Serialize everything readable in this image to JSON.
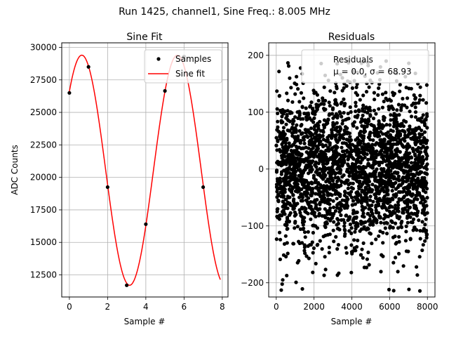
{
  "figure": {
    "suptitle": "Run 1425, channel1, Sine Freq.: 8.005 MHz"
  },
  "chart_data": [
    {
      "type": "line",
      "title": "Sine Fit",
      "xlabel": "Sample #",
      "ylabel": "ADC Counts",
      "xlim": [
        -0.4,
        8.3
      ],
      "ylim": [
        10800,
        30350
      ],
      "xticks": [
        0,
        2,
        4,
        6,
        8
      ],
      "yticks": [
        12500,
        15000,
        17500,
        20000,
        22500,
        25000,
        27500,
        30000
      ],
      "xtick_labels": [
        "0",
        "2",
        "4",
        "6",
        "8"
      ],
      "ytick_labels": [
        "12500",
        "15000",
        "17500",
        "20000",
        "22500",
        "25000",
        "27500",
        "30000"
      ],
      "grid": true,
      "legend_position": "upper right",
      "series": [
        {
          "name": "Samples",
          "kind": "scatter",
          "color": "#000000",
          "x": [
            0,
            1,
            2,
            3,
            4,
            5,
            6,
            7
          ],
          "y": [
            26500,
            28500,
            19250,
            11700,
            16400,
            26650,
            29300,
            19250
          ]
        },
        {
          "name": "Sine fit",
          "kind": "line",
          "color": "#ff0000",
          "function": "sine",
          "amplitude": 8850,
          "offset": 20550,
          "period": 5,
          "peak_x": 0.65,
          "x_range": [
            0,
            7.9
          ]
        }
      ]
    },
    {
      "type": "scatter",
      "title": "Residuals",
      "xlabel": "Sample #",
      "xlim": [
        -400,
        8400
      ],
      "ylim": [
        -225,
        222
      ],
      "xticks": [
        0,
        2000,
        4000,
        6000,
        8000
      ],
      "yticks": [
        -200,
        -100,
        0,
        100,
        200
      ],
      "xtick_labels": [
        "0",
        "2000",
        "4000",
        "6000",
        "8000"
      ],
      "ytick_labels": [
        "−200",
        "−100",
        "0",
        "100",
        "200"
      ],
      "grid": true,
      "legend_position": "upper right",
      "series": [
        {
          "name": "Residuals",
          "color": "#000000",
          "n_points": 8000,
          "x_range": [
            0,
            7999
          ],
          "mean": 0.0,
          "std": 68.93,
          "y_range": [
            -215,
            190
          ]
        }
      ],
      "legend_stats": "μ = 0.0, σ = 68.93"
    }
  ]
}
